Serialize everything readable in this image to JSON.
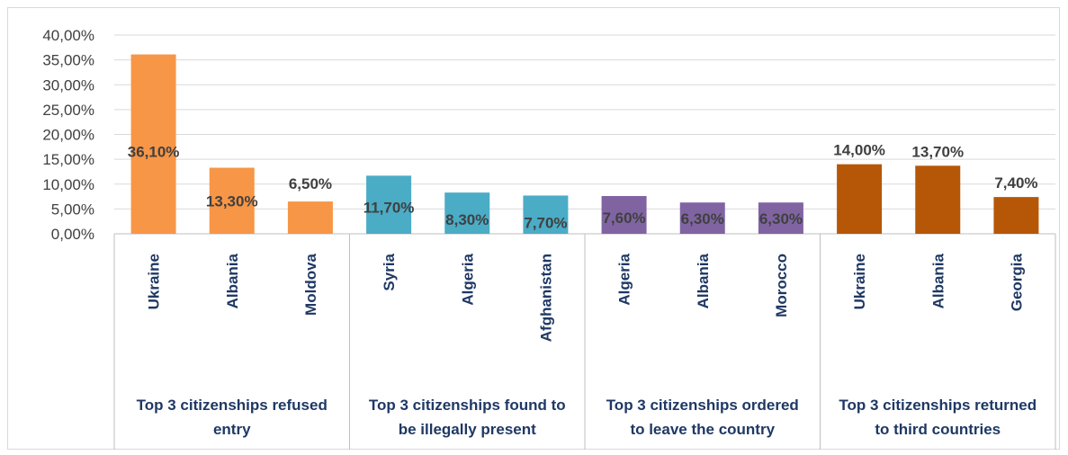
{
  "chart_data": {
    "type": "bar",
    "ylim": [
      0,
      40
    ],
    "yticks": [
      "0,00%",
      "5,00%",
      "10,00%",
      "15,00%",
      "20,00%",
      "25,00%",
      "30,00%",
      "35,00%",
      "40,00%"
    ],
    "grid": true,
    "groups": [
      {
        "label": [
          "Top 3 citizenships refused",
          "entry"
        ],
        "color": "#f79646",
        "categories": [
          "Ukraine",
          "Albania",
          "Moldova"
        ],
        "values": [
          36.1,
          13.3,
          6.5
        ],
        "labels": [
          "36,10%",
          "13,30%",
          "6,50%"
        ]
      },
      {
        "label": [
          "Top 3 citizenships found to",
          "be illegally present"
        ],
        "color": "#4bacc6",
        "categories": [
          "Syria",
          "Algeria",
          "Afghanistan"
        ],
        "values": [
          11.7,
          8.3,
          7.7
        ],
        "labels": [
          "11,70%",
          "8,30%",
          "7,70%"
        ]
      },
      {
        "label": [
          "Top 3 citizenships ordered",
          "to leave the country"
        ],
        "color": "#8064a2",
        "categories": [
          "Algeria",
          "Albania",
          "Morocco"
        ],
        "values": [
          7.6,
          6.3,
          6.3
        ],
        "labels": [
          "7,60%",
          "6,30%",
          "6,30%"
        ]
      },
      {
        "label": [
          "Top 3 citizenships returned",
          "to third countries"
        ],
        "color": "#b65708",
        "categories": [
          "Ukraine",
          "Albania",
          "Georgia"
        ],
        "values": [
          14.0,
          13.7,
          7.4
        ],
        "labels": [
          "14,00%",
          "13,70%",
          "7,40%"
        ]
      }
    ]
  }
}
